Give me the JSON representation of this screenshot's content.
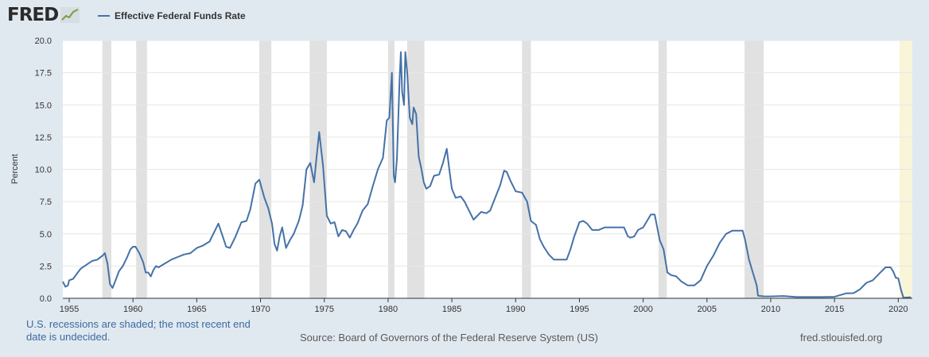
{
  "brand": {
    "logo_text": "FRED",
    "logo_icon": "fred-graph-icon"
  },
  "legend": {
    "label": "Effective Federal Funds Rate",
    "color": "#4572a7"
  },
  "footer": {
    "note": "U.S. recessions are shaded; the most recent end date is undecided.",
    "source": "Source: Board of Governors of the Federal Reserve System (US)",
    "url": "fred.stlouisfed.org"
  },
  "colors": {
    "background": "#e1e9f0",
    "plot": "#ffffff",
    "line": "#4572a7",
    "recession": "#e1e1e1",
    "undecided_recession": "#f8f5d9",
    "grid": "#e6e6e6"
  },
  "chart_data": {
    "type": "line",
    "title": "",
    "xlabel": "",
    "ylabel": "Percent",
    "xlim": [
      1954.5,
      2021.1
    ],
    "ylim": [
      0,
      20
    ],
    "grid": true,
    "legend_position": "top-left",
    "x_ticks": [
      "1955",
      "1960",
      "1965",
      "1970",
      "1975",
      "1980",
      "1985",
      "1990",
      "1995",
      "2000",
      "2005",
      "2010",
      "2015",
      "2020"
    ],
    "y_ticks": [
      "0.0",
      "2.5",
      "5.0",
      "7.5",
      "10.0",
      "12.5",
      "15.0",
      "17.5",
      "20.0"
    ],
    "recessions": [
      {
        "start": 1957.6,
        "end": 1958.3
      },
      {
        "start": 1960.25,
        "end": 1961.1
      },
      {
        "start": 1969.9,
        "end": 1970.85
      },
      {
        "start": 1973.85,
        "end": 1975.2
      },
      {
        "start": 1980.0,
        "end": 1980.5
      },
      {
        "start": 1981.5,
        "end": 1982.85
      },
      {
        "start": 1990.5,
        "end": 1991.2
      },
      {
        "start": 2001.2,
        "end": 2001.85
      },
      {
        "start": 2007.95,
        "end": 2009.45
      }
    ],
    "undecided_recession": {
      "start": 2020.1,
      "end": 2021.1
    },
    "series": [
      {
        "name": "Effective Federal Funds Rate",
        "x": [
          1954.5,
          1954.7,
          1954.9,
          1955.0,
          1955.3,
          1955.6,
          1955.9,
          1956.2,
          1956.5,
          1956.8,
          1957.2,
          1957.6,
          1957.8,
          1958.0,
          1958.2,
          1958.4,
          1958.6,
          1958.9,
          1959.2,
          1959.5,
          1959.8,
          1960.0,
          1960.2,
          1960.5,
          1960.8,
          1961.0,
          1961.2,
          1961.4,
          1961.6,
          1961.8,
          1962.0,
          1962.5,
          1963.0,
          1963.5,
          1964.0,
          1964.5,
          1965.0,
          1965.5,
          1966.0,
          1966.5,
          1966.7,
          1967.0,
          1967.3,
          1967.6,
          1968.0,
          1968.5,
          1968.9,
          1969.2,
          1969.6,
          1969.9,
          1970.3,
          1970.6,
          1970.9,
          1971.1,
          1971.3,
          1971.5,
          1971.7,
          1972.0,
          1972.3,
          1972.6,
          1973.0,
          1973.3,
          1973.6,
          1973.9,
          1974.2,
          1974.4,
          1974.6,
          1974.9,
          1975.2,
          1975.5,
          1975.8,
          1976.1,
          1976.4,
          1976.7,
          1977.0,
          1977.3,
          1977.6,
          1978.0,
          1978.4,
          1978.8,
          1979.2,
          1979.6,
          1979.9,
          1980.1,
          1980.3,
          1980.45,
          1980.55,
          1980.7,
          1980.9,
          1981.0,
          1981.1,
          1981.25,
          1981.35,
          1981.5,
          1981.7,
          1981.9,
          1982.0,
          1982.2,
          1982.4,
          1982.6,
          1982.8,
          1983.0,
          1983.3,
          1983.6,
          1984.0,
          1984.3,
          1984.6,
          1984.8,
          1985.0,
          1985.3,
          1985.7,
          1986.0,
          1986.3,
          1986.7,
          1987.0,
          1987.3,
          1987.7,
          1988.0,
          1988.4,
          1988.8,
          1989.1,
          1989.3,
          1989.6,
          1990.0,
          1990.5,
          1990.9,
          1991.2,
          1991.6,
          1991.9,
          1992.2,
          1992.6,
          1993.0,
          1993.5,
          1994.0,
          1994.3,
          1994.6,
          1995.0,
          1995.3,
          1995.6,
          1996.0,
          1996.5,
          1997.0,
          1997.5,
          1998.0,
          1998.5,
          1998.8,
          1999.0,
          1999.3,
          1999.6,
          2000.0,
          2000.3,
          2000.6,
          2000.9,
          2001.1,
          2001.3,
          2001.6,
          2001.9,
          2002.2,
          2002.6,
          2003.0,
          2003.5,
          2004.0,
          2004.5,
          2005.0,
          2005.5,
          2006.0,
          2006.5,
          2007.0,
          2007.5,
          2007.8,
          2008.0,
          2008.3,
          2008.6,
          2008.9,
          2009.0,
          2009.5,
          2010.0,
          2011.0,
          2012.0,
          2013.0,
          2014.0,
          2015.0,
          2015.9,
          2016.5,
          2017.0,
          2017.5,
          2018.0,
          2018.5,
          2019.0,
          2019.4,
          2019.6,
          2019.8,
          2020.0,
          2020.2,
          2020.4,
          2021.0
        ],
        "values": [
          1.3,
          0.9,
          1.0,
          1.4,
          1.5,
          1.9,
          2.3,
          2.5,
          2.7,
          2.9,
          3.0,
          3.3,
          3.5,
          2.7,
          1.1,
          0.8,
          1.3,
          2.1,
          2.5,
          3.1,
          3.8,
          4.0,
          4.0,
          3.5,
          2.8,
          2.0,
          2.0,
          1.7,
          2.2,
          2.5,
          2.4,
          2.7,
          3.0,
          3.2,
          3.4,
          3.5,
          3.9,
          4.1,
          4.4,
          5.4,
          5.8,
          4.9,
          4.0,
          3.9,
          4.7,
          5.9,
          6.0,
          6.9,
          8.9,
          9.2,
          7.8,
          7.0,
          5.8,
          4.2,
          3.7,
          4.8,
          5.5,
          3.9,
          4.5,
          5.0,
          6.0,
          7.2,
          10.0,
          10.5,
          9.0,
          11.0,
          12.9,
          10.3,
          6.4,
          5.8,
          5.9,
          4.8,
          5.3,
          5.2,
          4.7,
          5.3,
          5.8,
          6.8,
          7.3,
          8.7,
          10.0,
          10.9,
          13.8,
          14.0,
          17.5,
          9.5,
          9.0,
          10.9,
          17.0,
          19.1,
          16.0,
          15.0,
          19.1,
          17.5,
          14.0,
          13.5,
          14.8,
          14.3,
          11.0,
          10.1,
          9.0,
          8.5,
          8.7,
          9.5,
          9.6,
          10.5,
          11.6,
          10.0,
          8.5,
          7.8,
          7.9,
          7.5,
          6.9,
          6.1,
          6.4,
          6.7,
          6.6,
          6.8,
          7.8,
          8.8,
          9.9,
          9.8,
          9.1,
          8.3,
          8.2,
          7.5,
          6.0,
          5.7,
          4.6,
          4.0,
          3.4,
          3.0,
          3.0,
          3.0,
          3.8,
          4.8,
          5.9,
          6.0,
          5.8,
          5.3,
          5.3,
          5.5,
          5.5,
          5.5,
          5.5,
          4.8,
          4.7,
          4.8,
          5.3,
          5.5,
          6.0,
          6.5,
          6.5,
          5.5,
          4.5,
          3.8,
          2.0,
          1.8,
          1.7,
          1.3,
          1.0,
          1.0,
          1.4,
          2.5,
          3.3,
          4.3,
          5.0,
          5.25,
          5.25,
          5.25,
          4.5,
          3.0,
          2.0,
          1.0,
          0.2,
          0.15,
          0.15,
          0.18,
          0.1,
          0.1,
          0.1,
          0.12,
          0.38,
          0.4,
          0.7,
          1.2,
          1.4,
          1.9,
          2.4,
          2.4,
          2.1,
          1.6,
          1.55,
          0.7,
          0.05,
          0.08
        ]
      }
    ]
  }
}
